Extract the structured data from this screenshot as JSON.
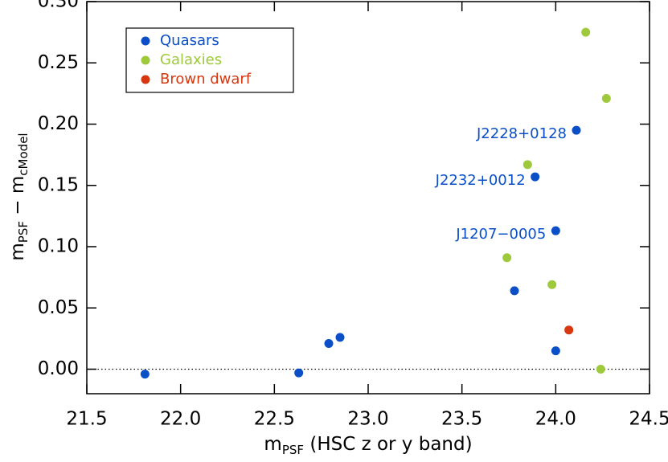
{
  "chart_data": {
    "type": "scatter",
    "xlabel": {
      "main": "m",
      "sub": "PSF",
      "rest": " (HSC z or y band)"
    },
    "ylabel": {
      "main1": "m",
      "sub1": "PSF",
      "mid": " − m",
      "sub2": "cModel"
    },
    "xlim": [
      21.5,
      24.5
    ],
    "ylim": [
      -0.02,
      0.3
    ],
    "xticks": [
      21.5,
      {
        "value": 22,
        "label": "22.0"
      },
      22.5,
      {
        "value": 23,
        "label": "23.0"
      },
      23.5,
      {
        "value": 24,
        "label": "24.0"
      },
      24.5
    ],
    "yticks": [
      {
        "value": 0,
        "label": "0.00"
      },
      0.05,
      {
        "value": 0.1,
        "label": "0.10"
      },
      0.15,
      {
        "value": 0.2,
        "label": "0.20"
      },
      0.25,
      {
        "value": 0.3,
        "label": "0.30"
      }
    ],
    "reference_line": 0,
    "legend": "upper left",
    "series": [
      {
        "name": "Quasars",
        "color": "#0a4fc8",
        "x": [
          21.81,
          22.63,
          22.79,
          22.85,
          23.78,
          23.89,
          24.0,
          24.11,
          24.0
        ],
        "values": [
          -0.004,
          -0.003,
          0.021,
          0.026,
          0.064,
          0.157,
          0.113,
          0.195,
          0.015
        ],
        "point_labels": [
          null,
          null,
          null,
          null,
          null,
          "J2232+0012",
          "J1207−0005",
          "J2228+0128",
          null
        ]
      },
      {
        "name": "Galaxies",
        "color": "#9dc93a",
        "x": [
          24.16,
          24.27,
          23.85,
          23.74,
          23.98,
          24.24
        ],
        "values": [
          0.275,
          0.221,
          0.167,
          0.091,
          0.069,
          0.0
        ]
      },
      {
        "name": "Brown dwarf",
        "color": "#d8380f",
        "x": [
          24.07
        ],
        "values": [
          0.032
        ]
      }
    ]
  }
}
